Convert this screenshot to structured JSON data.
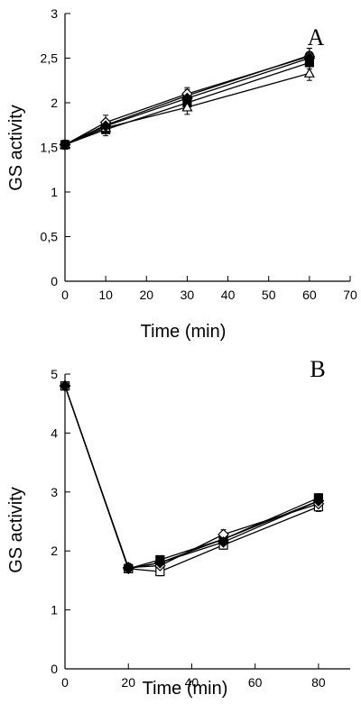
{
  "chart_data": [
    {
      "type": "line",
      "panel_label": "A",
      "xlabel": "Time (min)",
      "ylabel": "GS activity",
      "xlim": [
        0,
        70
      ],
      "ylim": [
        0,
        3
      ],
      "x_ticks": [
        "0",
        "10",
        "20",
        "30",
        "40",
        "50",
        "60",
        "70"
      ],
      "y_ticks": [
        "0",
        "0,5",
        "1",
        "1,5",
        "2",
        "2,5",
        "3"
      ],
      "grid": false,
      "x": [
        0,
        10,
        30,
        60
      ],
      "series": [
        {
          "marker": "open-circle",
          "values": [
            1.53,
            1.75,
            2.08,
            2.53
          ],
          "errors": [
            0.05,
            0.06,
            0.07,
            0.08
          ]
        },
        {
          "marker": "filled-square",
          "values": [
            1.53,
            1.7,
            2.0,
            2.45
          ],
          "errors": [
            0.05,
            0.07,
            0.08,
            0.07
          ]
        },
        {
          "marker": "open-diamond",
          "values": [
            1.53,
            1.78,
            2.1,
            2.52
          ],
          "errors": [
            0.05,
            0.08,
            0.07,
            0.09
          ]
        },
        {
          "marker": "open-triangle",
          "values": [
            1.53,
            1.72,
            1.95,
            2.33
          ],
          "errors": [
            0.05,
            0.06,
            0.08,
            0.08
          ]
        },
        {
          "marker": "filled-diamond",
          "values": [
            1.53,
            1.74,
            2.05,
            2.5
          ],
          "errors": [
            0.05,
            0.06,
            0.07,
            0.07
          ]
        }
      ]
    },
    {
      "type": "line",
      "panel_label": "B",
      "xlabel": "Time (min)",
      "ylabel": "GS activity",
      "xlim": [
        0,
        90
      ],
      "ylim": [
        0,
        5
      ],
      "x_ticks": [
        "0",
        "20",
        "40",
        "60",
        "80"
      ],
      "y_ticks": [
        "0",
        "1",
        "2",
        "3",
        "4",
        "5"
      ],
      "grid": false,
      "x": [
        0,
        20,
        30,
        50,
        80
      ],
      "series": [
        {
          "marker": "open-circle",
          "values": [
            4.8,
            1.7,
            1.8,
            2.2,
            2.85
          ],
          "errors": [
            0.06,
            0.07,
            0.08,
            0.08,
            0.08
          ]
        },
        {
          "marker": "filled-square",
          "values": [
            4.8,
            1.7,
            1.85,
            2.2,
            2.9
          ],
          "errors": [
            0.06,
            0.06,
            0.07,
            0.08,
            0.07
          ]
        },
        {
          "marker": "open-square",
          "values": [
            4.8,
            1.7,
            1.65,
            2.1,
            2.75
          ],
          "errors": [
            0.06,
            0.06,
            0.07,
            0.07,
            0.08
          ]
        },
        {
          "marker": "open-diamond",
          "values": [
            4.8,
            1.72,
            1.75,
            2.28,
            2.8
          ],
          "errors": [
            0.06,
            0.07,
            0.08,
            0.08,
            0.08
          ]
        },
        {
          "marker": "filled-diamond",
          "values": [
            4.8,
            1.7,
            1.8,
            2.15,
            2.85
          ],
          "errors": [
            0.06,
            0.06,
            0.07,
            0.07,
            0.07
          ]
        }
      ]
    }
  ]
}
